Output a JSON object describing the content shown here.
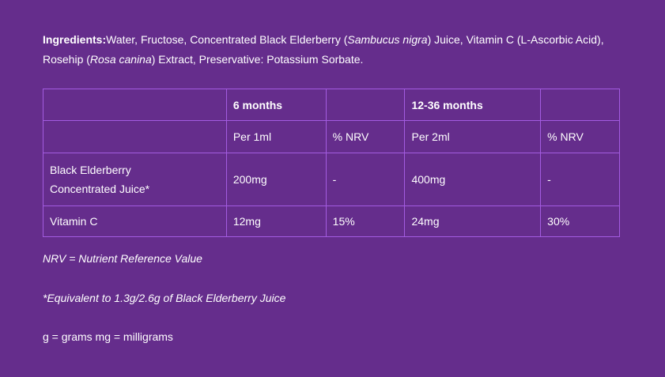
{
  "ingredients": {
    "label": "Ingredients:",
    "p1": "Water, Fructose, Concentrated Black Elderberry (",
    "i1": "Sambucus nigra",
    "p2": ") Juice, Vitamin C (L-Ascorbic Acid), Rosehip (",
    "i2": "Rosa canina",
    "p3": ") Extract, Preservative: Potassium Sorbate."
  },
  "table": {
    "header": [
      "",
      "6 months",
      "",
      "12-36 months",
      ""
    ],
    "subheader": [
      "",
      "Per 1ml",
      "% NRV",
      "Per 2ml",
      "% NRV"
    ],
    "rows": [
      [
        "Black Elderberry Concentrated Juice*",
        "200mg",
        "-",
        "400mg",
        "-"
      ],
      [
        "Vitamin C",
        "12mg",
        "15%",
        "24mg",
        "30%"
      ]
    ]
  },
  "notes": {
    "nrv": "NRV = Nutrient Reference Value",
    "equiv": "*Equivalent to 1.3g/2.6g of Black Elderberry Juice",
    "units": "g = grams mg = milligrams"
  },
  "colors": {
    "background": "#652d8c",
    "border": "#a35be0",
    "text": "#ffffff"
  }
}
